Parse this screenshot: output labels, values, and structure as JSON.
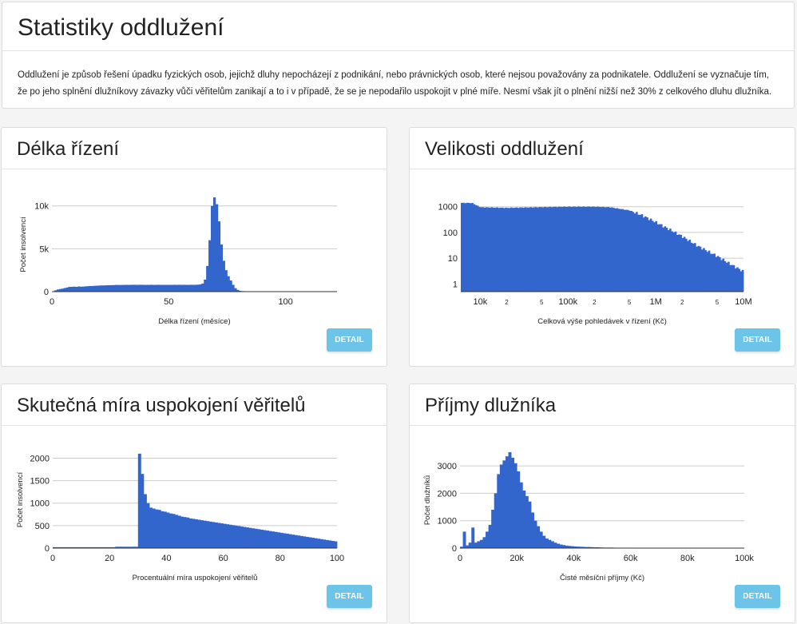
{
  "page": {
    "title": "Statistiky oddlužení",
    "intro": "Oddlužení je způsob řešení úpadku fyzických osob, jejichž dluhy nepocházejí z podnikání, nebo právnických osob, které nejsou považovány za podnikatele. Oddlužení se vyznačuje tím, že po jeho splnění dlužníkovy závazky vůči věřitelům zanikají a to i v případě, že se je nepodařilo uspokojit v plné míře. Nesmí však jít o plnění nižší než 30% z celkového dluhu dlužníka."
  },
  "panels": [
    {
      "title": "Délka řízení",
      "button": "DETAIL"
    },
    {
      "title": "Velikosti oddlužení",
      "button": "DETAIL"
    },
    {
      "title": "Skutečná míra uspokojení věřitelů",
      "button": "DETAIL"
    },
    {
      "title": "Příjmy dlužníka",
      "button": "DETAIL"
    }
  ],
  "theme": {
    "bar_color": "#3366cc",
    "button_color": "#6cc4e8",
    "grid_color": "#cccccc"
  },
  "chart_data": [
    {
      "type": "bar",
      "xlabel": "Délka řízení (měsíce)",
      "ylabel": "Počet insolvencí",
      "x_start": 0,
      "bin_width": 1,
      "xlim": [
        0,
        122
      ],
      "ylim": [
        0,
        11000
      ],
      "xticks": [
        0,
        50,
        100
      ],
      "xtick_labels": [
        "0",
        "50",
        "100"
      ],
      "yticks": [
        0,
        5000,
        10000
      ],
      "ytick_labels": [
        "0",
        "5k",
        "10k"
      ],
      "grid": true,
      "values": [
        30,
        150,
        250,
        300,
        350,
        420,
        480,
        550,
        560,
        580,
        560,
        600,
        580,
        590,
        620,
        640,
        650,
        660,
        680,
        700,
        710,
        720,
        730,
        740,
        750,
        760,
        760,
        780,
        780,
        770,
        780,
        790,
        790,
        790,
        800,
        800,
        790,
        800,
        800,
        790,
        790,
        790,
        800,
        790,
        790,
        800,
        790,
        790,
        790,
        790,
        790,
        790,
        800,
        790,
        800,
        790,
        800,
        790,
        790,
        800,
        790,
        800,
        810,
        850,
        950,
        1400,
        3000,
        6000,
        10000,
        11000,
        10200,
        8200,
        5500,
        3600,
        2500,
        1800,
        1300,
        800,
        400,
        200,
        90,
        60,
        50,
        40,
        30,
        25,
        20,
        20,
        20,
        20,
        20,
        20,
        20,
        20,
        20,
        20,
        20,
        20,
        20,
        20,
        20,
        20,
        20,
        20,
        20,
        20,
        20,
        20,
        20,
        20,
        20,
        20,
        20,
        20,
        20,
        20,
        20,
        20,
        20,
        20,
        20,
        20
      ]
    },
    {
      "type": "bar",
      "log_x": true,
      "log_y": true,
      "xlabel": "Celková výše pohledávek v řízení (Kč)",
      "xlim": [
        6000,
        10000000
      ],
      "ylim": [
        0.5,
        2000
      ],
      "xticks": [
        10000,
        20000,
        50000,
        100000,
        200000,
        500000,
        1000000,
        2000000,
        5000000,
        10000000
      ],
      "xtick_labels": [
        "10k",
        "2",
        "5",
        "100k",
        "2",
        "5",
        "1M",
        "2",
        "5",
        "10M"
      ],
      "yticks": [
        1,
        10,
        100,
        1000
      ],
      "ytick_labels": [
        "1",
        "10",
        "100",
        "1000"
      ],
      "grid": true,
      "x_points": [
        6000,
        8000,
        10000,
        20000,
        50000,
        100000,
        200000,
        300000,
        500000,
        700000,
        1000000,
        1500000,
        2000000,
        3000000,
        5000000,
        7000000,
        10000000
      ],
      "y_points": [
        1400,
        1400,
        950,
        900,
        960,
        1000,
        1000,
        950,
        720,
        460,
        250,
        120,
        70,
        30,
        12,
        6,
        3
      ]
    },
    {
      "type": "bar",
      "xlabel": "Procentuální míra uspokojení věřitelů",
      "ylabel": "Počet insolvencí",
      "x_start": 0,
      "bin_width": 1,
      "xlim": [
        0,
        100
      ],
      "ylim": [
        0,
        2150
      ],
      "xticks": [
        0,
        20,
        40,
        60,
        80,
        100
      ],
      "xtick_labels": [
        "0",
        "20",
        "40",
        "60",
        "80",
        "100"
      ],
      "yticks": [
        0,
        500,
        1000,
        1500,
        2000
      ],
      "ytick_labels": [
        "0",
        "500",
        "1000",
        "1500",
        "2000"
      ],
      "grid": true,
      "values": [
        20,
        20,
        20,
        20,
        20,
        20,
        20,
        20,
        20,
        20,
        20,
        20,
        20,
        20,
        20,
        20,
        20,
        20,
        20,
        20,
        20,
        20,
        30,
        30,
        30,
        30,
        30,
        30,
        30,
        30,
        2100,
        1650,
        1200,
        1000,
        900,
        880,
        860,
        850,
        820,
        810,
        790,
        770,
        760,
        740,
        720,
        700,
        690,
        680,
        660,
        650,
        640,
        630,
        620,
        610,
        600,
        590,
        580,
        570,
        560,
        550,
        540,
        530,
        520,
        510,
        500,
        490,
        480,
        470,
        460,
        450,
        440,
        430,
        420,
        410,
        400,
        390,
        380,
        370,
        360,
        350,
        340,
        330,
        320,
        310,
        300,
        290,
        280,
        270,
        260,
        250,
        240,
        230,
        220,
        210,
        200,
        190,
        180,
        170,
        160,
        150
      ]
    },
    {
      "type": "bar",
      "xlabel": "Čisté měsíční příjmy (Kč)",
      "ylabel": "Počet dlužníků",
      "x_start": 0,
      "bin_width": 1000,
      "xlim": [
        0,
        100000
      ],
      "ylim": [
        0,
        3500
      ],
      "xticks": [
        0,
        20000,
        40000,
        60000,
        80000,
        100000
      ],
      "xtick_labels": [
        "0",
        "20k",
        "40k",
        "60k",
        "80k",
        "100k"
      ],
      "yticks": [
        0,
        1000,
        2000,
        3000
      ],
      "ytick_labels": [
        "0",
        "1000",
        "2000",
        "3000"
      ],
      "grid": true,
      "values": [
        50,
        600,
        100,
        200,
        750,
        200,
        250,
        300,
        400,
        600,
        850,
        1400,
        2000,
        2700,
        3050,
        3200,
        3350,
        3500,
        3300,
        3100,
        2800,
        2400,
        2100,
        1900,
        1700,
        1300,
        1000,
        800,
        600,
        450,
        350,
        300,
        250,
        200,
        160,
        130,
        110,
        90,
        80,
        70,
        60,
        55,
        50,
        45,
        40,
        40,
        35,
        30,
        30,
        25,
        20,
        20,
        20,
        20,
        15,
        15,
        15,
        15,
        15,
        10,
        10,
        10,
        10,
        10,
        10,
        10,
        10,
        10,
        10,
        10,
        10,
        10,
        10,
        10,
        10,
        10,
        10,
        10,
        10,
        10,
        10,
        10,
        10,
        10,
        10,
        10,
        10,
        10,
        10,
        10,
        10,
        10,
        10,
        10,
        10,
        10,
        10,
        10,
        10,
        10
      ]
    }
  ]
}
